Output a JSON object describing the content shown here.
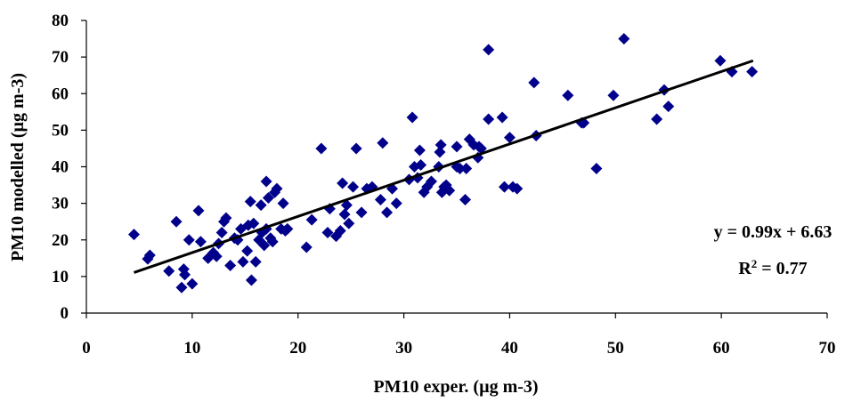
{
  "chart_data": {
    "type": "scatter",
    "xlabel": "PM10 exper. (µg m-3)",
    "ylabel": "PM10 modelled (µg m-3)",
    "xlim": [
      0,
      70
    ],
    "ylim": [
      0,
      80
    ],
    "xticks": [
      "0",
      "10",
      "20",
      "30",
      "40",
      "50",
      "60",
      "70"
    ],
    "yticks": [
      "0",
      "10",
      "20",
      "30",
      "40",
      "50",
      "60",
      "70",
      "80"
    ],
    "grid": false,
    "marker_color": "#00008B",
    "trendline": {
      "slope": 0.99,
      "intercept": 6.63,
      "x_range": [
        4.5,
        63
      ]
    },
    "annotations": {
      "equation": "y = 0.99x + 6.63",
      "r2_prefix": "R",
      "r2_exp": "2",
      "r2_suffix": " = 0.77"
    },
    "points": [
      [
        4.5,
        21.5
      ],
      [
        5.8,
        14.8
      ],
      [
        6.0,
        15.8
      ],
      [
        7.8,
        11.5
      ],
      [
        8.5,
        25.0
      ],
      [
        9.0,
        7.0
      ],
      [
        9.2,
        12.0
      ],
      [
        9.3,
        10.5
      ],
      [
        9.7,
        20.0
      ],
      [
        10.0,
        8.0
      ],
      [
        10.6,
        28.0
      ],
      [
        10.8,
        19.5
      ],
      [
        11.5,
        15.0
      ],
      [
        12.0,
        16.5
      ],
      [
        12.3,
        15.5
      ],
      [
        12.5,
        19.0
      ],
      [
        12.8,
        22.0
      ],
      [
        13.0,
        25.0
      ],
      [
        13.2,
        26.0
      ],
      [
        13.6,
        13.0
      ],
      [
        14.0,
        20.5
      ],
      [
        14.3,
        20.0
      ],
      [
        14.6,
        23.0
      ],
      [
        14.8,
        14.0
      ],
      [
        15.2,
        17.0
      ],
      [
        15.3,
        24.0
      ],
      [
        15.5,
        30.5
      ],
      [
        15.6,
        9.0
      ],
      [
        15.8,
        24.5
      ],
      [
        16.0,
        14.0
      ],
      [
        16.3,
        20.0
      ],
      [
        16.5,
        29.5
      ],
      [
        16.6,
        22.0
      ],
      [
        16.8,
        18.5
      ],
      [
        17.0,
        23.0
      ],
      [
        17.0,
        36.0
      ],
      [
        17.2,
        31.5
      ],
      [
        17.4,
        20.5
      ],
      [
        17.6,
        19.5
      ],
      [
        17.8,
        33.0
      ],
      [
        18.0,
        34.0
      ],
      [
        18.4,
        23.0
      ],
      [
        18.6,
        30.0
      ],
      [
        18.8,
        22.5
      ],
      [
        19.0,
        23.0
      ],
      [
        20.8,
        18.0
      ],
      [
        21.3,
        25.5
      ],
      [
        22.2,
        45.0
      ],
      [
        22.8,
        22.0
      ],
      [
        23.0,
        28.5
      ],
      [
        23.6,
        21.0
      ],
      [
        24.0,
        22.5
      ],
      [
        24.2,
        35.5
      ],
      [
        24.4,
        27.0
      ],
      [
        24.6,
        29.5
      ],
      [
        24.8,
        24.5
      ],
      [
        25.2,
        34.5
      ],
      [
        25.5,
        45.0
      ],
      [
        26.0,
        27.5
      ],
      [
        26.5,
        34.0
      ],
      [
        27.0,
        34.5
      ],
      [
        27.8,
        31.0
      ],
      [
        28.0,
        46.5
      ],
      [
        28.4,
        27.5
      ],
      [
        28.9,
        34.0
      ],
      [
        29.3,
        30.0
      ],
      [
        30.5,
        36.5
      ],
      [
        30.8,
        53.5
      ],
      [
        31.0,
        40.0
      ],
      [
        31.3,
        37.0
      ],
      [
        31.5,
        44.5
      ],
      [
        31.6,
        40.5
      ],
      [
        31.9,
        33.0
      ],
      [
        32.2,
        34.5
      ],
      [
        32.6,
        36.0
      ],
      [
        33.3,
        40.0
      ],
      [
        33.4,
        44.0
      ],
      [
        33.5,
        46.0
      ],
      [
        33.6,
        33.0
      ],
      [
        33.8,
        34.5
      ],
      [
        34.0,
        35.0
      ],
      [
        34.3,
        33.5
      ],
      [
        35.0,
        40.0
      ],
      [
        35.0,
        45.5
      ],
      [
        35.3,
        39.5
      ],
      [
        35.8,
        31.0
      ],
      [
        35.9,
        39.5
      ],
      [
        36.2,
        47.5
      ],
      [
        36.6,
        46.0
      ],
      [
        37.0,
        42.5
      ],
      [
        37.1,
        45.5
      ],
      [
        37.3,
        45.0
      ],
      [
        38.0,
        72.0
      ],
      [
        38.0,
        53.0
      ],
      [
        39.3,
        53.5
      ],
      [
        39.5,
        34.5
      ],
      [
        40.0,
        48.0
      ],
      [
        40.3,
        34.5
      ],
      [
        40.7,
        34.0
      ],
      [
        42.3,
        63.0
      ],
      [
        42.5,
        48.5
      ],
      [
        45.5,
        59.5
      ],
      [
        46.8,
        52.0
      ],
      [
        47.0,
        52.0
      ],
      [
        48.2,
        39.5
      ],
      [
        49.8,
        59.5
      ],
      [
        50.8,
        75.0
      ],
      [
        53.9,
        53.0
      ],
      [
        54.6,
        61.0
      ],
      [
        55.0,
        56.5
      ],
      [
        59.9,
        69.0
      ],
      [
        61.0,
        66.0
      ],
      [
        62.9,
        66.0
      ]
    ]
  }
}
